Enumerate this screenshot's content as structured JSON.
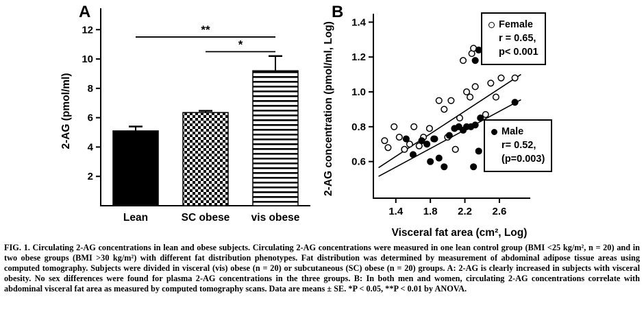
{
  "figure": {
    "panel_a_label": "A",
    "panel_b_label": "B"
  },
  "caption": {
    "text": "FIG. 1. Circulating 2-AG concentrations in lean and obese subjects. Circulating 2-AG concentrations were measured in one lean control group (BMI <25 kg/m², n = 20) and in two obese groups (BMI >30 kg/m²) with different fat distribution phenotypes. Fat distribution was determined by measurement of abdominal adipose tissue areas using computed tomography. Subjects were divided in visceral (vis) obese (n = 20) or subcutaneous (SC) obese (n = 20) groups. A: 2-AG is clearly increased in subjects with visceral obesity. No sex differences were found for plasma 2-AG concentrations in the three groups. B: In both men and women, circulating 2-AG concentrations correlate with abdominal visceral fat area as measured by computed tomography scans. Data are means ± SE. *P < 0.05, **P < 0.01 by ANOVA."
  },
  "chart_data": [
    {
      "type": "bar",
      "title": "",
      "ylabel": "2-AG (pmol/ml)",
      "categories": [
        "Lean",
        "SC obese",
        "vis obese"
      ],
      "values": [
        5.1,
        6.35,
        9.2
      ],
      "errors": [
        0.3,
        0.12,
        1.0
      ],
      "yticks": [
        2,
        4,
        6,
        8,
        10,
        12
      ],
      "ylim": [
        0,
        12.9
      ],
      "bar_styles": [
        "solid-black",
        "checker",
        "hlines"
      ],
      "significance": [
        {
          "from": 0,
          "to": 2,
          "label": "**",
          "y": 11.5
        },
        {
          "from": 1,
          "to": 2,
          "label": "*",
          "y": 10.5
        }
      ],
      "grid": false,
      "colors": {
        "ink": "#000000",
        "background": "#ffffff"
      }
    },
    {
      "type": "scatter",
      "title": "",
      "xlabel": "Visceral fat area (cm², Log)",
      "ylabel": "2-AG concentration (pmol/ml, Log)",
      "xticks": [
        1.4,
        1.8,
        2.2,
        2.6
      ],
      "yticks": [
        0.6,
        0.8,
        1.0,
        1.2,
        1.4
      ],
      "xlim": [
        1.14,
        2.91
      ],
      "ylim": [
        0.39,
        1.417
      ],
      "grid": false,
      "legend_position": "right-boxed",
      "series": [
        {
          "name": "Female",
          "marker": "open-circle",
          "r_text": "r = 0.65,",
          "p_text": "p< 0.001",
          "trend": {
            "x1": 1.2,
            "y1": 0.565,
            "x2": 2.85,
            "y2": 1.1
          },
          "points": [
            [
              1.27,
              0.72
            ],
            [
              1.31,
              0.68
            ],
            [
              1.38,
              0.8
            ],
            [
              1.44,
              0.74
            ],
            [
              1.5,
              0.67
            ],
            [
              1.56,
              0.7
            ],
            [
              1.61,
              0.8
            ],
            [
              1.67,
              0.69
            ],
            [
              1.72,
              0.74
            ],
            [
              1.79,
              0.79
            ],
            [
              1.84,
              0.73
            ],
            [
              1.9,
              0.95
            ],
            [
              1.96,
              0.9
            ],
            [
              2.0,
              0.74
            ],
            [
              2.04,
              0.95
            ],
            [
              2.09,
              0.67
            ],
            [
              2.14,
              0.85
            ],
            [
              2.18,
              1.18
            ],
            [
              2.22,
              1.0
            ],
            [
              2.26,
              0.97
            ],
            [
              2.28,
              1.22
            ],
            [
              2.32,
              1.03
            ],
            [
              2.3,
              1.25
            ],
            [
              2.44,
              0.87
            ],
            [
              2.5,
              1.05
            ],
            [
              2.56,
              0.97
            ],
            [
              2.62,
              1.08
            ],
            [
              2.78,
              1.08
            ]
          ]
        },
        {
          "name": "Male",
          "marker": "filled-circle",
          "r_text": "r= 0.52,",
          "p_text": "(p=0.003)",
          "trend": {
            "x1": 1.2,
            "y1": 0.515,
            "x2": 2.85,
            "y2": 0.955
          },
          "points": [
            [
              1.52,
              0.73
            ],
            [
              1.6,
              0.64
            ],
            [
              1.7,
              0.72
            ],
            [
              1.76,
              0.7
            ],
            [
              1.8,
              0.6
            ],
            [
              1.85,
              0.73
            ],
            [
              1.9,
              0.62
            ],
            [
              1.96,
              0.57
            ],
            [
              2.02,
              0.75
            ],
            [
              2.08,
              0.79
            ],
            [
              2.13,
              0.8
            ],
            [
              2.18,
              0.78
            ],
            [
              2.22,
              0.8
            ],
            [
              2.27,
              0.8
            ],
            [
              2.32,
              0.81
            ],
            [
              2.32,
              1.18
            ],
            [
              2.36,
              1.24
            ],
            [
              2.38,
              0.85
            ],
            [
              2.36,
              0.66
            ],
            [
              2.3,
              0.57
            ],
            [
              2.78,
              0.94
            ]
          ]
        }
      ]
    }
  ]
}
